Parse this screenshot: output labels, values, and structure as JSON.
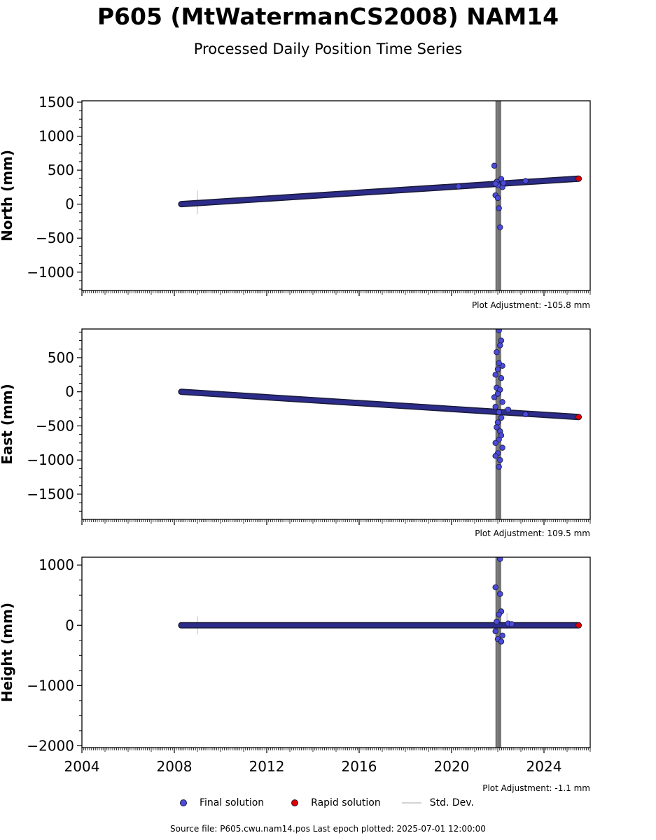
{
  "header": {
    "title": "P605 (MtWatermanCS2008) NAM14",
    "subtitle": "Processed Daily Position Time Series"
  },
  "legend": {
    "final": "Final solution",
    "rapid": "Rapid solution",
    "std": "Std. Dev."
  },
  "footer": "Source file: P605.cwu.nam14.pos  Last epoch plotted: 2025-07-01 12:00:00",
  "colors": {
    "final": "#4a4adc",
    "rapid": "#e00000",
    "marker_edge": "#1a1a3a",
    "outage_band": "#666666",
    "std_dev": "#d3d3d3"
  },
  "chart_data": [
    {
      "type": "scatter",
      "ylabel": "North (mm)",
      "adjustment": "Plot Adjustment: -105.8 mm",
      "xlim": [
        2004,
        2026
      ],
      "ylim": [
        -1270,
        1520
      ],
      "yticks": [
        1500,
        1000,
        500,
        0,
        -500,
        -1000
      ],
      "ytick_labels": [
        "1500",
        "1000",
        "500",
        "0",
        "−500",
        "−1000"
      ],
      "trend": {
        "x_start": 2008.3,
        "x_end": 2025.5,
        "y_start": 0,
        "y_end": 375
      },
      "final_points": {
        "x": [
          2021.85,
          2021.9,
          2022.0,
          2022.05,
          2022.1,
          2022.15,
          2021.95,
          2022.2,
          2022.0,
          2021.9,
          2022.25,
          2020.3,
          2023.2
        ],
        "y": [
          565,
          130,
          90,
          -60,
          -340,
          370,
          330,
          250,
          280,
          300,
          310,
          260,
          340
        ]
      },
      "rapid_points": {
        "x": [
          2025.5
        ],
        "y": [
          375
        ]
      },
      "std_dev": [
        {
          "x": 2009.0,
          "y_low": -150,
          "y_high": 200
        }
      ],
      "outage": [
        2021.9,
        2022.15
      ]
    },
    {
      "type": "scatter",
      "ylabel": "East (mm)",
      "adjustment": "Plot Adjustment: 109.5 mm",
      "xlim": [
        2004,
        2026
      ],
      "ylim": [
        -1870,
        920
      ],
      "yticks": [
        500,
        0,
        -500,
        -1000,
        -1500
      ],
      "ytick_labels": [
        "500",
        "0",
        "−500",
        "−1000",
        "−1500"
      ],
      "trend": {
        "x_start": 2008.3,
        "x_end": 2025.5,
        "y_start": 0,
        "y_end": -370
      },
      "final_points": {
        "x": [
          2022.05,
          2022.15,
          2022.1,
          2021.95,
          2022.2,
          2022.0,
          2021.9,
          2022.05,
          2022.15,
          2021.95,
          2022.1,
          2022.0,
          2021.85,
          2022.2,
          2021.9,
          2022.05,
          2022.15,
          2022.0,
          2021.95,
          2022.1,
          2022.05,
          2021.9,
          2022.2,
          2022.0,
          2022.1,
          2022.45,
          2023.2,
          2022.15,
          2021.9,
          2022.05
        ],
        "y": [
          900,
          750,
          680,
          580,
          380,
          330,
          250,
          420,
          200,
          60,
          30,
          -30,
          -80,
          -150,
          -220,
          -300,
          -380,
          -450,
          -520,
          -580,
          -700,
          -750,
          -820,
          -900,
          -1000,
          -260,
          -330,
          -640,
          -940,
          -1100
        ]
      },
      "rapid_points": {
        "x": [
          2025.5
        ],
        "y": [
          -370
        ]
      },
      "std_dev": [
        {
          "x": 2022.3,
          "y_low": -400,
          "y_high": -230
        }
      ],
      "outage": [
        2021.9,
        2022.15
      ]
    },
    {
      "type": "scatter",
      "ylabel": "Height (mm)",
      "adjustment": "Plot Adjustment: -1.1 mm",
      "xlim": [
        2004,
        2026
      ],
      "ylim": [
        -2030,
        1130
      ],
      "yticks": [
        1000,
        0,
        -1000,
        -2000
      ],
      "ytick_labels": [
        "1000",
        "0",
        "−1000",
        "−2000"
      ],
      "xticks": [
        2004,
        2008,
        2012,
        2016,
        2020,
        2024
      ],
      "xtick_labels": [
        "2004",
        "2008",
        "2012",
        "2016",
        "2020",
        "2024"
      ],
      "trend": {
        "x_start": 2008.3,
        "x_end": 2025.5,
        "y_start": 0,
        "y_end": 0
      },
      "final_points": {
        "x": [
          2021.9,
          2022.1,
          2022.15,
          2022.05,
          2021.95,
          2022.2,
          2022.0,
          2022.15,
          2021.9,
          2022.45,
          2022.6,
          2022.1
        ],
        "y": [
          630,
          520,
          230,
          180,
          60,
          -170,
          -230,
          -270,
          -100,
          30,
          20,
          1100
        ]
      },
      "rapid_points": {
        "x": [
          2025.5
        ],
        "y": [
          0
        ]
      },
      "std_dev": [
        {
          "x": 2009.0,
          "y_low": -150,
          "y_high": 150
        },
        {
          "x": 2022.4,
          "y_low": -60,
          "y_high": 200
        }
      ],
      "outage": [
        2021.9,
        2022.15
      ]
    }
  ]
}
